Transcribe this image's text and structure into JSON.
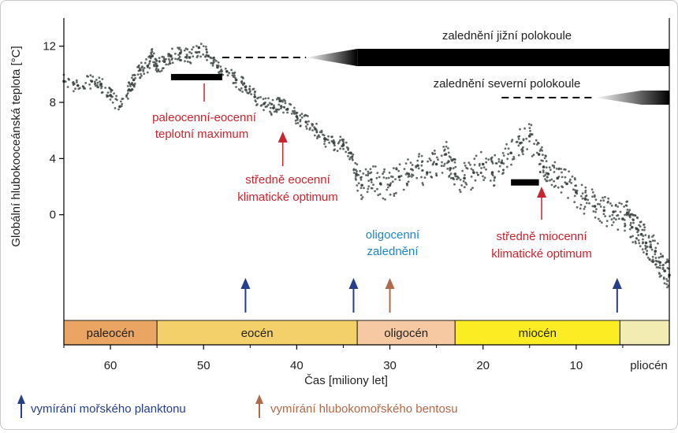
{
  "chart_data": {
    "type": "scatter",
    "xlabel": "Čas [miliony let]",
    "ylabel": "Globální hlubokooceánská teplota [°C]",
    "xlim": [
      65,
      0
    ],
    "ylim": [
      -4.5,
      14
    ],
    "x_ticks": [
      60,
      50,
      40,
      30,
      20,
      10
    ],
    "y_ticks": [
      0,
      4,
      8,
      12
    ],
    "series": [
      {
        "color": "#3c4642",
        "x": [
          65,
          63.5,
          62,
          61,
          60,
          59,
          58,
          57.5,
          56.8,
          56,
          55.5,
          55,
          54.2,
          53.5,
          52.5,
          51.5,
          50.5,
          49.5,
          48.5,
          47.5,
          46.5,
          45.5,
          44.5,
          43.5,
          42.5,
          41.8,
          41,
          40,
          39,
          38,
          37,
          36,
          35,
          34.2,
          33.6,
          33,
          32,
          31,
          30,
          29,
          28,
          27,
          26,
          25,
          24,
          23.5,
          23,
          22,
          21,
          20,
          19,
          18,
          17,
          16,
          15,
          14,
          13.5,
          13,
          12,
          11,
          10,
          9,
          8,
          7,
          6,
          5,
          4.5,
          4,
          3.5,
          3,
          2.5,
          2,
          1.5,
          1,
          0.5,
          0
        ],
        "y": [
          9.5,
          9.2,
          9.5,
          9.3,
          8.5,
          7.7,
          8.9,
          9.6,
          10.3,
          10.6,
          11.3,
          10.6,
          10.9,
          11.3,
          11.5,
          11.2,
          11.9,
          11.3,
          10.5,
          10.2,
          9.6,
          9.1,
          8.4,
          7.9,
          7.6,
          8.1,
          7.5,
          7.0,
          6.6,
          6.1,
          5.4,
          5.1,
          5.0,
          4.4,
          2.9,
          2.1,
          2.5,
          2.2,
          2.1,
          2.7,
          2.9,
          3.5,
          3.0,
          3.6,
          4.3,
          3.3,
          2.9,
          2.6,
          3.0,
          3.6,
          3.0,
          3.7,
          4.4,
          5.1,
          5.6,
          4.3,
          3.4,
          2.9,
          2.6,
          2.2,
          1.6,
          1.1,
          0.6,
          0.3,
          0.2,
          -0.3,
          0.1,
          -0.9,
          -1.0,
          -1.4,
          -2.0,
          -2.3,
          -2.6,
          -3.4,
          -4.0,
          -4.3
        ]
      }
    ]
  },
  "eras": [
    {
      "label": "paleocén",
      "start": 65,
      "end": 55,
      "color": "#eaa562"
    },
    {
      "label": "eocén",
      "start": 55,
      "end": 33.5,
      "color": "#f4d06a"
    },
    {
      "label": "oligocén",
      "start": 33.5,
      "end": 23,
      "color": "#f6c9a2"
    },
    {
      "label": "miocén",
      "start": 23,
      "end": 5.3,
      "color": "#fbec23"
    },
    {
      "label": "",
      "start": 5.3,
      "end": 0,
      "color": "#f2ecb3"
    }
  ],
  "era_extra_label": "pliocén",
  "glaciations": {
    "south": {
      "label": "zalednění jižní polokoule",
      "dash_from": 48,
      "dash_to": 39,
      "solid_from": 39,
      "solid_to": 0,
      "ramp_to": 33.5
    },
    "north": {
      "label": "zalednění severní polokoule",
      "dash_from": 18,
      "dash_to": 8,
      "solid_from": 8,
      "solid_to": 0,
      "ramp_to": 3
    }
  },
  "annotations": {
    "petm": {
      "line1": "paleocenní-eocenní",
      "line2": "teplotní maximum",
      "bar_from": 53.5,
      "bar_to": 48,
      "bar_temp": 9.8
    },
    "meco": {
      "line1": "středně eocenní",
      "line2": "klimatické optimum",
      "x": 41.5
    },
    "oligo": {
      "line1": "oligocenní",
      "line2": "zalednění"
    },
    "mmco": {
      "line1": "středně miocenní",
      "line2": "klimatické optimum",
      "bar_from": 17,
      "bar_to": 14,
      "bar_temp": 2.3
    }
  },
  "extinctions": {
    "plankton_x": [
      45.5,
      33.9,
      5.6
    ],
    "benthos_x": [
      30
    ]
  },
  "legend": {
    "plankton": {
      "label": "vymírání mořského planktonu",
      "color": "#263f8a"
    },
    "benthos": {
      "label": "vymírání hlubokomořského bentosu",
      "color": "#b06a4a"
    }
  },
  "colors": {
    "annotation_red": "#c7262f",
    "annotation_blue": "#1f86c4",
    "data_point": "#3c4642"
  }
}
